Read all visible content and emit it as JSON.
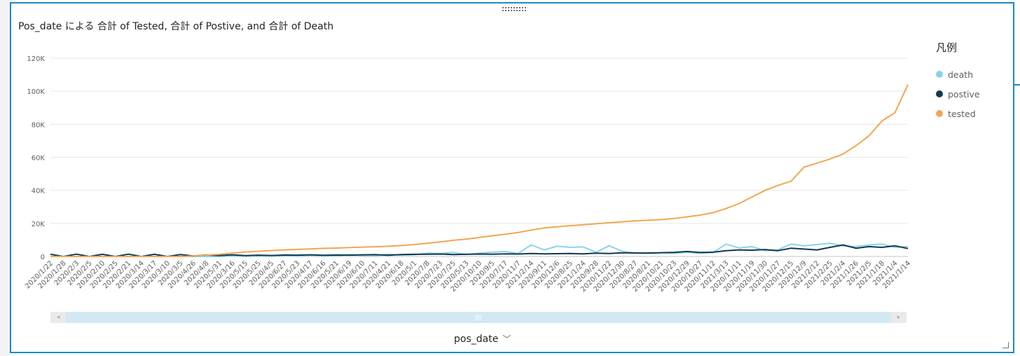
{
  "chart_data": {
    "type": "line",
    "title": "Pos_date による 合計 of Tested, 合計 of Postive, and 合計 of Death",
    "xlabel": "pos_date",
    "ylabel": "",
    "ylim": [
      0,
      120000
    ],
    "y_ticks": [
      0,
      20000,
      40000,
      60000,
      80000,
      100000,
      120000
    ],
    "y_tick_labels": [
      "0",
      "20K",
      "40K",
      "60K",
      "80K",
      "100K",
      "120K"
    ],
    "grid": true,
    "legend_title": "凡例",
    "legend_position": "right",
    "categories": [
      "2020/1/22",
      "2020/1/28",
      "2020/2/3",
      "2020/2/5",
      "2020/2/10",
      "2020/2/25",
      "2020/2/21",
      "2020/3/14",
      "2020/3/17",
      "2020/3/10",
      "2020/3/5",
      "2020/4/26",
      "2020/4/8",
      "2020/5/31",
      "2020/3/16",
      "2020/5/15",
      "2020/5/25",
      "2020/4/5",
      "2020/6/27",
      "2020/5/23",
      "2020/4/17",
      "2020/6/16",
      "2020/5/21",
      "2020/6/19",
      "2020/6/10",
      "2020/7/11",
      "2020/4/21",
      "2020/6/18",
      "2020/5/1",
      "2020/7/8",
      "2020/7/23",
      "2020/7/25",
      "2020/5/13",
      "2020/10/10",
      "2020/9/5",
      "2020/7/17",
      "2020/11/7",
      "2021/2/14",
      "2020/9/11",
      "2020/12/6",
      "2020/8/25",
      "2021/1/24",
      "2020/9/28",
      "2020/11/22",
      "2020/12/30",
      "2020/8/27",
      "2020/8/21",
      "2020/10/21",
      "2020/10/23",
      "2020/12/29",
      "2020/10/27",
      "2020/11/12",
      "2021/3/13",
      "2020/11/11",
      "2020/11/19",
      "2020/11/30",
      "2020/11/27",
      "2020/12/15",
      "2020/12/9",
      "2021/2/12",
      "2021/2/25",
      "2021/2/4",
      "2021/1/26",
      "2021/2/5",
      "2021/1/18",
      "2021/1/4",
      "2021/1/14"
    ],
    "series": [
      {
        "name": "death",
        "color": "#8ad4eb",
        "values": [
          0,
          0,
          0,
          0,
          0,
          0,
          0,
          0,
          0,
          0,
          0,
          0,
          0,
          0,
          200,
          300,
          200,
          400,
          600,
          200,
          800,
          500,
          300,
          1200,
          600,
          400,
          1500,
          800,
          1000,
          2000,
          1800,
          2500,
          1200,
          2000,
          2600,
          3000,
          1800,
          7000,
          4000,
          6200,
          5500,
          5800,
          2500,
          6500,
          3200,
          2000,
          2400,
          2200,
          1800,
          2600,
          1900,
          2400,
          7500,
          5200,
          6000,
          3500,
          4000,
          7500,
          6500,
          7200,
          8000,
          6400,
          6000,
          7000,
          7500,
          5500,
          6000
        ]
      },
      {
        "name": "postive",
        "color": "#12394f",
        "values": [
          1300,
          0,
          1400,
          0,
          1300,
          0,
          1400,
          0,
          1300,
          0,
          1200,
          300,
          900,
          600,
          1000,
          500,
          800,
          600,
          900,
          800,
          1000,
          700,
          900,
          800,
          1000,
          1100,
          700,
          1200,
          1300,
          1400,
          1500,
          1200,
          1300,
          1500,
          1400,
          1600,
          1500,
          1800,
          1600,
          1700,
          1800,
          1600,
          2000,
          1800,
          2200,
          2100,
          2000,
          2300,
          2500,
          3000,
          2400,
          2600,
          3500,
          4000,
          3800,
          4200,
          3500,
          5000,
          4500,
          4000,
          5500,
          7000,
          5000,
          6000,
          5500,
          6500,
          4800
        ]
      },
      {
        "name": "tested",
        "color": "#f2a654",
        "values": [
          0,
          0,
          0,
          0,
          0,
          0,
          0,
          0,
          0,
          0,
          0,
          300,
          800,
          1300,
          2000,
          2700,
          3200,
          3600,
          4000,
          4300,
          4600,
          4900,
          5100,
          5400,
          5700,
          5900,
          6200,
          6600,
          7200,
          8000,
          8800,
          9800,
          10500,
          11500,
          12500,
          13500,
          14500,
          16000,
          17200,
          18000,
          18600,
          19200,
          19800,
          20400,
          21000,
          21500,
          21900,
          22300,
          23000,
          24000,
          25000,
          26500,
          29000,
          32000,
          36000,
          40000,
          43000,
          45500,
          54000,
          56500,
          59000,
          62000,
          67000,
          73000,
          82000,
          87000,
          104000
        ]
      }
    ]
  },
  "scrollbar": {
    "thumb_start": 0.02,
    "thumb_end": 0.98
  }
}
